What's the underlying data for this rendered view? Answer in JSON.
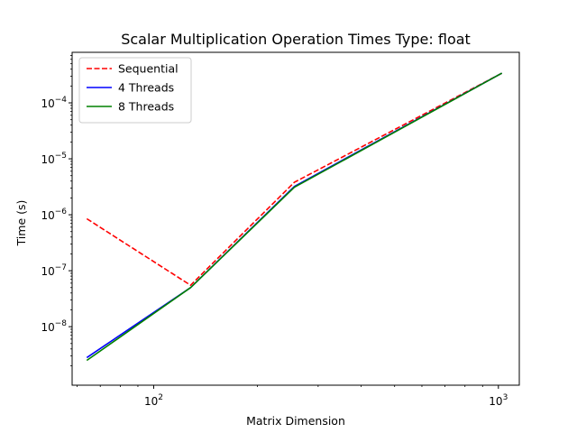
{
  "chart_data": {
    "type": "line",
    "title": "Scalar Multiplication Operation Times Type: float",
    "xlabel": "Matrix Dimension",
    "ylabel": "Time (s)",
    "xscale": "log",
    "yscale": "log",
    "xlim": [
      58,
      1150
    ],
    "ylim": [
      9e-10,
      0.0008
    ],
    "grid": false,
    "legend_position": "top-left",
    "x": [
      64,
      128,
      256,
      1024
    ],
    "x_ticks": [
      {
        "value": 100,
        "base": "10",
        "exp": "2"
      },
      {
        "value": 1000,
        "base": "10",
        "exp": "3"
      }
    ],
    "y_ticks": [
      {
        "value": 1e-08,
        "base": "10",
        "exp": "−8"
      },
      {
        "value": 1e-07,
        "base": "10",
        "exp": "−7"
      },
      {
        "value": 1e-06,
        "base": "10",
        "exp": "−6"
      },
      {
        "value": 1e-05,
        "base": "10",
        "exp": "−5"
      },
      {
        "value": 0.0001,
        "base": "10",
        "exp": "−4"
      }
    ],
    "series": [
      {
        "name": "Sequential",
        "color": "#ff0000",
        "dash": "dashed",
        "values": [
          8.5e-07,
          5.5e-08,
          3.8e-06,
          0.00034
        ]
      },
      {
        "name": "4 Threads",
        "color": "#0000ff",
        "dash": "solid",
        "values": [
          2.8e-09,
          5e-08,
          3.2e-06,
          0.00034
        ]
      },
      {
        "name": "8 Threads",
        "color": "#008000",
        "dash": "solid",
        "values": [
          2.5e-09,
          5e-08,
          3.1e-06,
          0.00034
        ]
      }
    ]
  }
}
